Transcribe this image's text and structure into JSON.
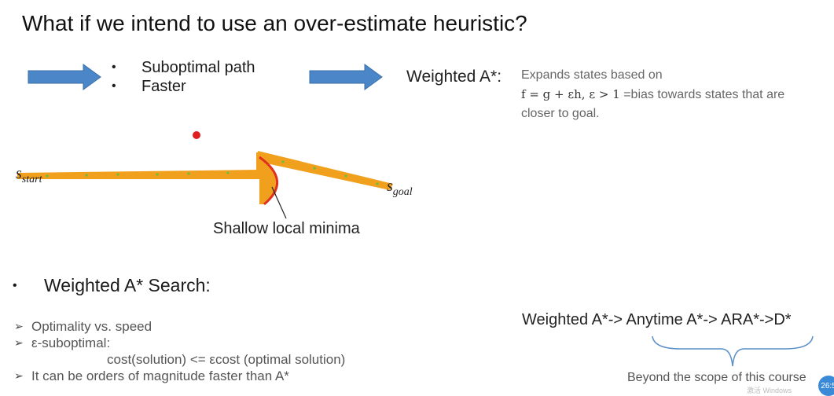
{
  "title": "What if we intend to use an over-estimate heuristic?",
  "bullets": [
    "Suboptimal path",
    "Faster"
  ],
  "weighted_label": "Weighted A*:",
  "weighted_desc": {
    "line1": "Expands states based on",
    "formula": "f = g + εh, ε > 1",
    "line2": " =bias towards states that are closer to goal."
  },
  "diagram": {
    "start_label": "s",
    "start_sub": "start",
    "goal_label": "s",
    "goal_sub": "goal",
    "minima_label": "Shallow local minima",
    "colors": {
      "path": "#f0a01c",
      "arrow": "#4a86c8",
      "boundary": "#e03020",
      "dot": "#e02020",
      "dots": "#6cbf3c"
    }
  },
  "search_title": "Weighted A* Search:",
  "search_list": [
    "Optimality vs. speed",
    "ε-suboptimal:",
    "cost(solution) <= εcost (optimal solution)",
    "It can be orders of magnitude faster than A*"
  ],
  "chain": "Weighted A*-> Anytime A*-> ARA*->D*",
  "beyond": "Beyond the scope of this course",
  "badge": "26:5",
  "watermark": "激活 Windows"
}
